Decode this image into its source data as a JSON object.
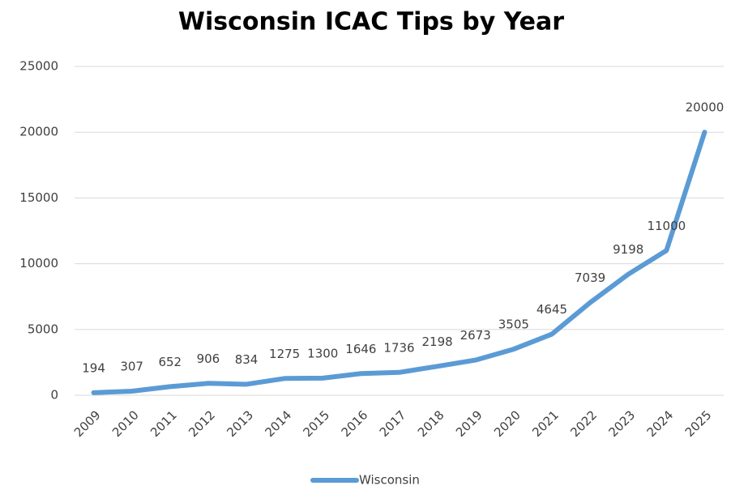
{
  "chart_data": {
    "type": "line",
    "title": "Wisconsin ICAC Tips by Year",
    "categories": [
      "2009",
      "2010",
      "2011",
      "2012",
      "2013",
      "2014",
      "2015",
      "2016",
      "2017",
      "2018",
      "2019",
      "2020",
      "2021",
      "2022",
      "2023",
      "2024",
      "2025"
    ],
    "series": [
      {
        "name": "Wisconsin",
        "color": "#5b9bd5",
        "values": [
          194,
          307,
          652,
          906,
          834,
          1275,
          1300,
          1646,
          1736,
          2198,
          2673,
          3505,
          4645,
          7039,
          9198,
          11000,
          20000
        ]
      }
    ],
    "ylim": [
      0,
      25000
    ],
    "yticks": [
      0,
      5000,
      10000,
      15000,
      20000,
      25000
    ],
    "grid": true,
    "legend": "bottom"
  }
}
